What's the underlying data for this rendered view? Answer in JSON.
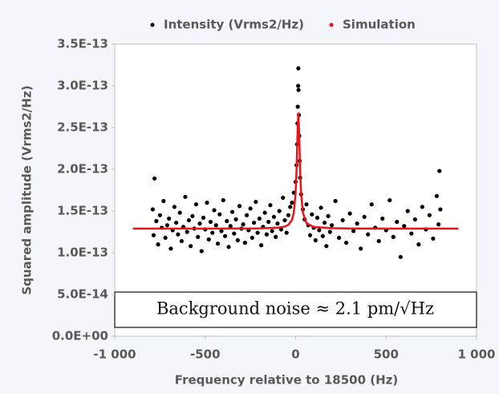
{
  "chart_data": {
    "type": "scatter",
    "xlabel": "Frequency relative to 18500 (Hz)",
    "ylabel": "Squared amplitude (Vrms2/Hz)",
    "annotation": "Background noise ≈ 2.1 pm/√Hz",
    "xlim": [
      -1000,
      1000
    ],
    "xticks": [
      {
        "value": -1000,
        "label": "-1 000"
      },
      -500,
      0,
      500,
      {
        "value": 1000,
        "label": "1 000"
      }
    ],
    "ylim": [
      0,
      3.5e-13
    ],
    "yticks": [
      {
        "value": 0,
        "label": "0.0E+00"
      },
      {
        "value": 5e-14,
        "label": "5.0E-14"
      },
      {
        "value": 1e-13,
        "label": "1.0E-13"
      },
      {
        "value": 1.5e-13,
        "label": "1.5E-13"
      },
      {
        "value": 2e-13,
        "label": "2.0E-13"
      },
      {
        "value": 2.5e-13,
        "label": "2.5E-13"
      },
      {
        "value": 3e-13,
        "label": "3.0E-13"
      },
      {
        "value": 3.5e-13,
        "label": "3.5E-13"
      }
    ],
    "series": [
      {
        "name": "Intensity (Vrms2/Hz)",
        "color": "#000000",
        "style": "points",
        "x": [
          -790,
          -785,
          -780,
          -770,
          -760,
          -750,
          -740,
          -730,
          -720,
          -710,
          -700,
          -690,
          -680,
          -670,
          -660,
          -650,
          -640,
          -630,
          -620,
          -610,
          -600,
          -590,
          -580,
          -570,
          -560,
          -550,
          -540,
          -530,
          -520,
          -510,
          -500,
          -490,
          -480,
          -470,
          -460,
          -450,
          -440,
          -430,
          -420,
          -410,
          -400,
          -390,
          -380,
          -370,
          -360,
          -350,
          -340,
          -330,
          -320,
          -310,
          -300,
          -290,
          -280,
          -270,
          -260,
          -250,
          -240,
          -230,
          -220,
          -210,
          -200,
          -190,
          -180,
          -170,
          -160,
          -150,
          -140,
          -130,
          -120,
          -110,
          -100,
          -90,
          -80,
          -70,
          -60,
          -50,
          -40,
          -30,
          -20,
          -10,
          0,
          5,
          8,
          10,
          12,
          14,
          15,
          16,
          18,
          20,
          22,
          25,
          30,
          40,
          50,
          60,
          70,
          80,
          90,
          100,
          110,
          120,
          130,
          140,
          150,
          160,
          170,
          180,
          190,
          200,
          220,
          240,
          260,
          280,
          300,
          320,
          340,
          360,
          380,
          400,
          420,
          440,
          460,
          480,
          500,
          520,
          540,
          560,
          580,
          600,
          620,
          640,
          660,
          680,
          700,
          720,
          740,
          760,
          780,
          790,
          795,
          800
        ],
        "values": [
          1.52e-13,
          1.21e-13,
          1.89e-13,
          1.38e-13,
          1.1e-13,
          1.45e-13,
          1.3e-13,
          1.62e-13,
          1.18e-13,
          1.33e-13,
          1.41e-13,
          1.05e-13,
          1.27e-13,
          1.55e-13,
          1.36e-13,
          1.22e-13,
          1.48e-13,
          1.14e-13,
          1.31e-13,
          1.67e-13,
          1.25e-13,
          1.39e-13,
          1.08e-13,
          1.44e-13,
          1.29e-13,
          1.58e-13,
          1.19e-13,
          1.35e-13,
          1.02e-13,
          1.42e-13,
          1.28e-13,
          1.6e-13,
          1.16e-13,
          1.37e-13,
          1.24e-13,
          1.51e-13,
          1.33e-13,
          1.11e-13,
          1.46e-13,
          1.26e-13,
          1.63e-13,
          1.2e-13,
          1.38e-13,
          1.07e-13,
          1.32e-13,
          1.49e-13,
          1.23e-13,
          1.4e-13,
          1.15e-13,
          1.56e-13,
          1.29e-13,
          1.34e-13,
          1.12e-13,
          1.45e-13,
          1.27e-13,
          1.53e-13,
          1.18e-13,
          1.36e-13,
          1.61e-13,
          1.24e-13,
          1.41e-13,
          1.09e-13,
          1.31e-13,
          1.48e-13,
          1.22e-13,
          1.37e-13,
          1.57e-13,
          1.26e-13,
          1.43e-13,
          1.19e-13,
          1.35e-13,
          1.5e-13,
          1.28e-13,
          1.66e-13,
          1.39e-13,
          1.24e-13,
          1.45e-13,
          1.55e-13,
          1.6e-13,
          1.72e-13,
          1.85e-13,
          2.05e-13,
          2.3e-13,
          2.55e-13,
          2.75e-13,
          3e-13,
          3.21e-13,
          2.95e-13,
          2.65e-13,
          2.4e-13,
          2.1e-13,
          1.9e-13,
          1.7e-13,
          1.52e-13,
          1.4e-13,
          1.58e-13,
          1.33e-13,
          1.21e-13,
          1.46e-13,
          1.3e-13,
          1.15e-13,
          1.42e-13,
          1.27e-13,
          1.54e-13,
          1.2e-13,
          1.36e-13,
          1.08e-13,
          1.44e-13,
          1.25e-13,
          1.33e-13,
          1.62e-13,
          1.18e-13,
          1.39e-13,
          1.12e-13,
          1.47e-13,
          1.26e-13,
          1.35e-13,
          1.05e-13,
          1.43e-13,
          1.22e-13,
          1.58e-13,
          1.3e-13,
          1.14e-13,
          1.41e-13,
          1.27e-13,
          1.63e-13,
          1.19e-13,
          1.37e-13,
          9.5e-14,
          1.32e-13,
          1.5e-13,
          1.23e-13,
          1.4e-13,
          1.1e-13,
          1.55e-13,
          1.28e-13,
          1.45e-13,
          1.17e-13,
          1.68e-13,
          1.34e-13,
          1.98e-13,
          1.52e-13
        ]
      },
      {
        "name": "Simulation",
        "color": "#e8141a",
        "style": "line",
        "x": [
          -900,
          -700,
          -500,
          -300,
          -200,
          -100,
          -60,
          -40,
          -20,
          -10,
          0,
          5,
          10,
          15,
          20,
          25,
          30,
          40,
          60,
          100,
          200,
          300,
          500,
          700,
          900
        ],
        "values": [
          1.29e-13,
          1.29e-13,
          1.29e-13,
          1.291e-13,
          1.292e-13,
          1.3e-13,
          1.314e-13,
          1.334e-13,
          1.395e-13,
          1.482e-13,
          1.718e-13,
          1.985e-13,
          2.402e-13,
          2.68e-13,
          2.402e-13,
          1.985e-13,
          1.718e-13,
          1.482e-13,
          1.355e-13,
          1.309e-13,
          1.294e-13,
          1.291e-13,
          1.29e-13,
          1.29e-13,
          1.29e-13
        ]
      }
    ]
  }
}
